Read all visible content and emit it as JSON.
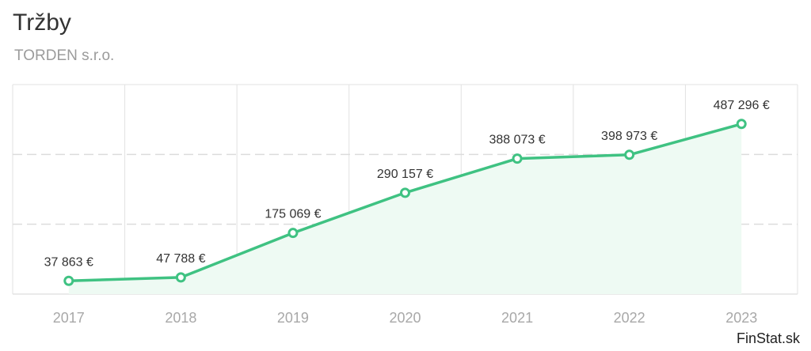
{
  "title": "Tržby",
  "subtitle": "TORDEN s.r.o.",
  "credit": "FinStat.sk",
  "colors": {
    "line": "#3fc282",
    "area": "#eefaf3",
    "grid": "#e2e2e2",
    "axis_label": "#a8a8a8",
    "value_label": "#333333"
  },
  "chart_data": {
    "type": "area",
    "categories": [
      "2017",
      "2018",
      "2019",
      "2020",
      "2021",
      "2022",
      "2023"
    ],
    "series": [
      {
        "values": [
          37863,
          47788,
          175069,
          290157,
          388073,
          398973,
          487296
        ],
        "labels": [
          "37 863 €",
          "47 788 €",
          "175 069 €",
          "290 157 €",
          "388 073 €",
          "398 973 €",
          "487 296 €"
        ]
      }
    ],
    "ylim": [
      0,
      600000
    ],
    "grid": true,
    "legend": "none"
  }
}
